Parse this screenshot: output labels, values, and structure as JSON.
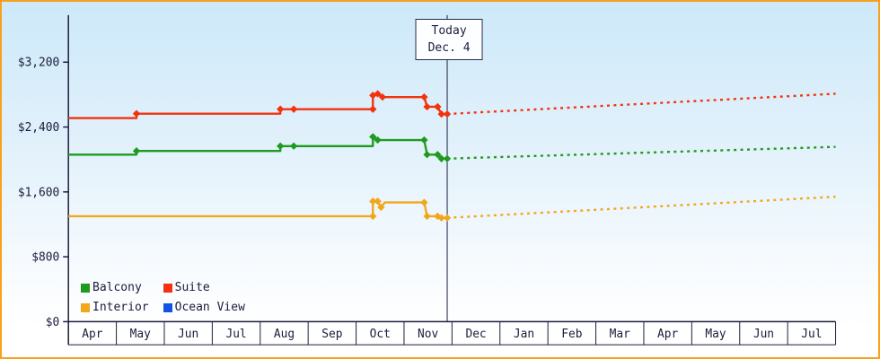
{
  "colors": {
    "border": "#f9a11b",
    "background_top": "#cde9fa",
    "background_bottom": "#ffffff",
    "axis": "#1c1c3c",
    "text": "#1c1c3c",
    "balcony": "#1e9b1e",
    "suite": "#f2330d",
    "interior": "#f2a71b",
    "ocean_view": "#1352e2"
  },
  "today": {
    "label": "Today",
    "date": "Dec. 4",
    "month_index": 7.9
  },
  "legend": {
    "items": [
      {
        "id": "balcony",
        "label": "Balcony",
        "color_key": "balcony"
      },
      {
        "id": "suite",
        "label": "Suite",
        "color_key": "suite"
      },
      {
        "id": "interior",
        "label": "Interior",
        "color_key": "interior"
      },
      {
        "id": "ocean-view",
        "label": "Ocean View",
        "color_key": "ocean_view"
      }
    ]
  },
  "chart_data": {
    "type": "line",
    "x_labels": [
      "Apr",
      "May",
      "Jun",
      "Jul",
      "Aug",
      "Sep",
      "Oct",
      "Nov",
      "Dec",
      "Jan",
      "Feb",
      "Mar",
      "Apr",
      "May",
      "Jun",
      "Jul"
    ],
    "xlim": [
      0,
      16
    ],
    "ylim": [
      0,
      3780
    ],
    "y_ticks": [
      {
        "value": 0,
        "label": "$0"
      },
      {
        "value": 800,
        "label": "$800"
      },
      {
        "value": 1600,
        "label": "$1,600"
      },
      {
        "value": 2400,
        "label": "$2,400"
      },
      {
        "value": 3200,
        "label": "$3,200"
      }
    ],
    "legend_position": "bottom-left",
    "grid": false,
    "series": [
      {
        "id": "interior",
        "name": "Interior",
        "color_key": "interior",
        "solid": [
          [
            0,
            1300
          ],
          [
            6.35,
            1300
          ],
          [
            6.35,
            1485
          ],
          [
            6.45,
            1485
          ],
          [
            6.52,
            1410
          ],
          [
            6.6,
            1470
          ],
          [
            7.42,
            1470
          ],
          [
            7.48,
            1300
          ],
          [
            7.7,
            1300
          ],
          [
            7.78,
            1280
          ],
          [
            7.9,
            1280
          ]
        ],
        "dashed": [
          [
            7.9,
            1280
          ],
          [
            16,
            1540
          ]
        ],
        "markers": [
          [
            6.35,
            1300
          ],
          [
            6.35,
            1485
          ],
          [
            6.45,
            1485
          ],
          [
            6.52,
            1410
          ],
          [
            7.42,
            1470
          ],
          [
            7.48,
            1300
          ],
          [
            7.7,
            1300
          ],
          [
            7.78,
            1280
          ],
          [
            7.9,
            1280
          ]
        ]
      },
      {
        "id": "balcony",
        "name": "Balcony",
        "color_key": "balcony",
        "solid": [
          [
            0,
            2060
          ],
          [
            1.42,
            2060
          ],
          [
            1.42,
            2105
          ],
          [
            4.42,
            2105
          ],
          [
            4.42,
            2165
          ],
          [
            6.35,
            2165
          ],
          [
            6.35,
            2280
          ],
          [
            6.45,
            2240
          ],
          [
            7.42,
            2240
          ],
          [
            7.48,
            2060
          ],
          [
            7.7,
            2060
          ],
          [
            7.78,
            2010
          ],
          [
            7.9,
            2010
          ]
        ],
        "dashed": [
          [
            7.9,
            2010
          ],
          [
            16,
            2155
          ]
        ],
        "markers": [
          [
            1.42,
            2105
          ],
          [
            4.42,
            2165
          ],
          [
            4.7,
            2165
          ],
          [
            6.35,
            2280
          ],
          [
            6.45,
            2240
          ],
          [
            7.42,
            2240
          ],
          [
            7.48,
            2060
          ],
          [
            7.7,
            2060
          ],
          [
            7.78,
            2010
          ],
          [
            7.9,
            2010
          ]
        ]
      },
      {
        "id": "suite",
        "name": "Suite",
        "color_key": "suite",
        "solid": [
          [
            0,
            2510
          ],
          [
            1.42,
            2510
          ],
          [
            1.42,
            2565
          ],
          [
            4.42,
            2565
          ],
          [
            4.42,
            2620
          ],
          [
            6.35,
            2620
          ],
          [
            6.35,
            2790
          ],
          [
            6.45,
            2810
          ],
          [
            6.55,
            2770
          ],
          [
            7.42,
            2770
          ],
          [
            7.48,
            2650
          ],
          [
            7.7,
            2650
          ],
          [
            7.78,
            2560
          ],
          [
            7.9,
            2560
          ]
        ],
        "dashed": [
          [
            7.9,
            2560
          ],
          [
            16,
            2810
          ]
        ],
        "markers": [
          [
            1.42,
            2565
          ],
          [
            4.42,
            2620
          ],
          [
            4.7,
            2620
          ],
          [
            6.35,
            2620
          ],
          [
            6.35,
            2790
          ],
          [
            6.45,
            2810
          ],
          [
            6.55,
            2770
          ],
          [
            7.42,
            2770
          ],
          [
            7.48,
            2650
          ],
          [
            7.7,
            2650
          ],
          [
            7.78,
            2560
          ],
          [
            7.9,
            2560
          ]
        ]
      },
      {
        "id": "ocean-view",
        "name": "Ocean View",
        "color_key": "ocean_view",
        "solid": [],
        "dashed": [],
        "markers": []
      }
    ]
  }
}
